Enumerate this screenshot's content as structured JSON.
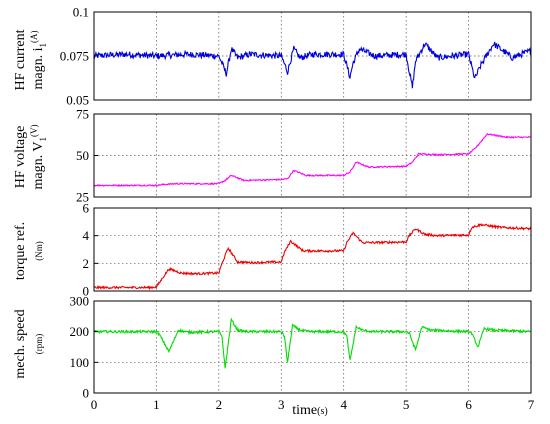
{
  "chart_data": [
    {
      "type": "line",
      "ylabel_main": "HF current",
      "ylabel_second": "magn. i",
      "ylabel_sub": "1",
      "ylabel_sup": "(A)",
      "xlim": [
        0,
        7
      ],
      "ylim": [
        0.05,
        0.1
      ],
      "yticks": [
        "0.05",
        "0.075",
        "0.1"
      ],
      "grid": true,
      "color": "#0000dd",
      "series": [
        {
          "x": [
            0,
            0.5,
            1,
            1.5,
            2,
            2.12,
            2.2,
            2.3,
            2.5,
            3,
            3.1,
            3.2,
            3.3,
            3.5,
            4,
            4.1,
            4.15,
            4.25,
            4.5,
            5,
            5.1,
            5.15,
            5.3,
            5.5,
            6,
            6.1,
            6.2,
            6.4,
            6.7,
            7
          ],
          "y": [
            0.075,
            0.076,
            0.075,
            0.076,
            0.075,
            0.065,
            0.079,
            0.074,
            0.076,
            0.075,
            0.066,
            0.079,
            0.074,
            0.076,
            0.076,
            0.063,
            0.071,
            0.079,
            0.075,
            0.076,
            0.057,
            0.072,
            0.082,
            0.074,
            0.076,
            0.062,
            0.07,
            0.082,
            0.074,
            0.078
          ],
          "noise": 0.0018
        }
      ]
    },
    {
      "type": "line",
      "ylabel_main": "HF voltage",
      "ylabel_second": "magn. V",
      "ylabel_sub": "1",
      "ylabel_sup": "(V)",
      "xlim": [
        0,
        7
      ],
      "ylim": [
        25,
        75
      ],
      "yticks": [
        "25",
        "50",
        "75"
      ],
      "grid": true,
      "color": "#ff00ff",
      "series": [
        {
          "x": [
            0,
            1,
            1.1,
            1.3,
            2,
            2.1,
            2.2,
            2.4,
            3,
            3.1,
            3.2,
            3.4,
            4,
            4.1,
            4.2,
            4.4,
            5,
            5.1,
            5.2,
            5.5,
            6,
            6.1,
            6.3,
            6.6,
            7
          ],
          "y": [
            32,
            32,
            32.5,
            33,
            33,
            35,
            38,
            35,
            35.5,
            36,
            41,
            38,
            38,
            40,
            46,
            43,
            43.5,
            46,
            51,
            50.5,
            51,
            54,
            63,
            61,
            61
          ],
          "noise": 0.4
        }
      ]
    },
    {
      "type": "line",
      "ylabel_main": "torque ref.",
      "ylabel_unit": "(Nm)",
      "xlim": [
        0,
        7
      ],
      "ylim": [
        0,
        6
      ],
      "yticks": [
        "0",
        "2",
        "4",
        "6"
      ],
      "grid": true,
      "color": "#ee0000",
      "series": [
        {
          "x": [
            0,
            0.9,
            1,
            1.2,
            1.4,
            1.6,
            2,
            2.05,
            2.15,
            2.3,
            2.5,
            3,
            3.05,
            3.15,
            3.35,
            3.5,
            4,
            4.05,
            4.15,
            4.3,
            4.5,
            5,
            5.05,
            5.15,
            5.3,
            5.5,
            6,
            6.05,
            6.2,
            6.5,
            7
          ],
          "y": [
            0.25,
            0.25,
            0.3,
            1.6,
            1.3,
            1.25,
            1.3,
            2.0,
            3.1,
            2.1,
            2.05,
            2.1,
            2.8,
            3.6,
            2.9,
            2.9,
            2.9,
            3.5,
            4.2,
            3.5,
            3.5,
            3.55,
            4.0,
            4.5,
            4.1,
            4.0,
            4.05,
            4.6,
            4.8,
            4.6,
            4.5
          ],
          "noise": 0.08
        }
      ]
    },
    {
      "type": "line",
      "ylabel_main": "mech. speed",
      "ylabel_unit": "(rpm)",
      "xlim": [
        0,
        7
      ],
      "ylim": [
        0,
        300
      ],
      "yticks": [
        "0",
        "100",
        "200",
        "300"
      ],
      "xticks": [
        "0",
        "1",
        "2",
        "3",
        "4",
        "5",
        "6",
        "7"
      ],
      "xlabel": "time",
      "xlabel_unit": "(s)",
      "grid": true,
      "color": "#00dd00",
      "series": [
        {
          "x": [
            0,
            1,
            1.05,
            1.2,
            1.35,
            1.5,
            2,
            2.05,
            2.1,
            2.2,
            2.3,
            2.45,
            3,
            3.05,
            3.1,
            3.18,
            3.3,
            3.45,
            4,
            4.05,
            4.1,
            4.2,
            4.3,
            4.45,
            5,
            5.05,
            5.15,
            5.25,
            5.4,
            6,
            6.05,
            6.15,
            6.25,
            6.4,
            7
          ],
          "y": [
            200,
            200,
            190,
            135,
            205,
            198,
            200,
            185,
            80,
            240,
            205,
            200,
            200,
            185,
            100,
            220,
            205,
            200,
            200,
            185,
            105,
            215,
            205,
            200,
            200,
            195,
            140,
            215,
            205,
            200,
            195,
            150,
            210,
            205,
            200
          ],
          "noise": 4
        }
      ]
    }
  ]
}
